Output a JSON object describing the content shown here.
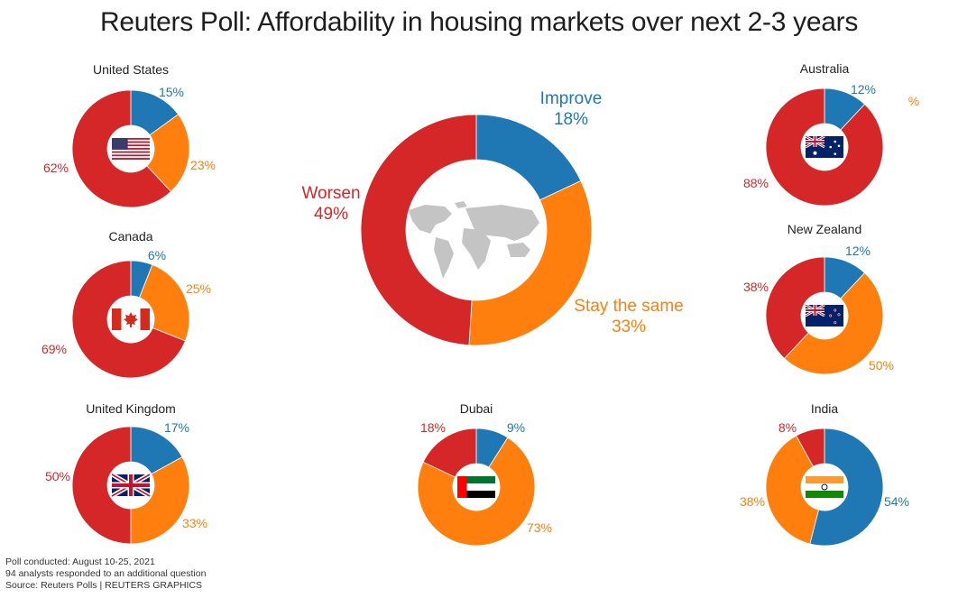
{
  "title": "Reuters Poll: Affordability in housing markets over next 2-3 years",
  "colors": {
    "improve": "#1f77b4",
    "same": "#ff7f0e",
    "worsen": "#d62728"
  },
  "chart_data": [
    {
      "type": "pie",
      "id": "global",
      "title": "",
      "center_icon": "world-map-icon",
      "size": "large",
      "categories": [
        "Improve",
        "Stay the same",
        "Worsen"
      ],
      "values": [
        18,
        33,
        49
      ],
      "labels": [
        {
          "cat": "improve",
          "text_line1": "Improve",
          "text_line2": "18%"
        },
        {
          "cat": "same",
          "text_line1": "Stay the same",
          "text_line2": "33%"
        },
        {
          "cat": "worsen",
          "text_line1": "Worsen",
          "text_line2": "49%"
        }
      ]
    },
    {
      "type": "pie",
      "id": "us",
      "title": "United States",
      "center_icon": "us-flag-icon",
      "categories": [
        "Improve",
        "Stay the same",
        "Worsen"
      ],
      "values": [
        15,
        23,
        62
      ],
      "labels": [
        {
          "cat": "improve",
          "text": "15%"
        },
        {
          "cat": "same",
          "text": "23%"
        },
        {
          "cat": "worsen",
          "text": "62%"
        }
      ]
    },
    {
      "type": "pie",
      "id": "canada",
      "title": "Canada",
      "center_icon": "canada-flag-icon",
      "categories": [
        "Improve",
        "Stay the same",
        "Worsen"
      ],
      "values": [
        6,
        25,
        69
      ],
      "labels": [
        {
          "cat": "improve",
          "text": "6%"
        },
        {
          "cat": "same",
          "text": "25%"
        },
        {
          "cat": "worsen",
          "text": "69%"
        }
      ]
    },
    {
      "type": "pie",
      "id": "uk",
      "title": "United Kingdom",
      "center_icon": "uk-flag-icon",
      "categories": [
        "Improve",
        "Stay the same",
        "Worsen"
      ],
      "values": [
        17,
        33,
        50
      ],
      "labels": [
        {
          "cat": "improve",
          "text": "17%"
        },
        {
          "cat": "same",
          "text": "33%"
        },
        {
          "cat": "worsen",
          "text": "50%"
        }
      ]
    },
    {
      "type": "pie",
      "id": "australia",
      "title": "Australia",
      "center_icon": "australia-flag-icon",
      "categories": [
        "Improve",
        "Stay the same",
        "Worsen"
      ],
      "values": [
        12,
        0,
        88
      ],
      "labels": [
        {
          "cat": "improve",
          "text": "12%"
        },
        {
          "cat": "same",
          "text": "%"
        },
        {
          "cat": "worsen",
          "text": "88%"
        }
      ]
    },
    {
      "type": "pie",
      "id": "nz",
      "title": "New Zealand",
      "center_icon": "new-zealand-flag-icon",
      "categories": [
        "Improve",
        "Stay the same",
        "Worsen"
      ],
      "values": [
        12,
        50,
        38
      ],
      "labels": [
        {
          "cat": "improve",
          "text": "12%"
        },
        {
          "cat": "same",
          "text": "50%"
        },
        {
          "cat": "worsen",
          "text": "38%"
        }
      ]
    },
    {
      "type": "pie",
      "id": "dubai",
      "title": "Dubai",
      "center_icon": "uae-flag-icon",
      "categories": [
        "Improve",
        "Stay the same",
        "Worsen"
      ],
      "values": [
        9,
        73,
        18
      ],
      "labels": [
        {
          "cat": "improve",
          "text": "9%"
        },
        {
          "cat": "same",
          "text": "73%"
        },
        {
          "cat": "worsen",
          "text": "18%"
        }
      ]
    },
    {
      "type": "pie",
      "id": "india",
      "title": "India",
      "center_icon": "india-flag-icon",
      "categories": [
        "Improve",
        "Stay the same",
        "Worsen"
      ],
      "values": [
        54,
        38,
        8
      ],
      "labels": [
        {
          "cat": "improve",
          "text": "54%"
        },
        {
          "cat": "same",
          "text": "38%"
        },
        {
          "cat": "worsen",
          "text": "8%"
        }
      ]
    }
  ],
  "footer": {
    "line1": "Poll conducted: August 10-25, 2021",
    "line2": "94 analysts responded to an additional question",
    "line3": "Source: Reuters Polls  | REUTERS GRAPHICS"
  }
}
